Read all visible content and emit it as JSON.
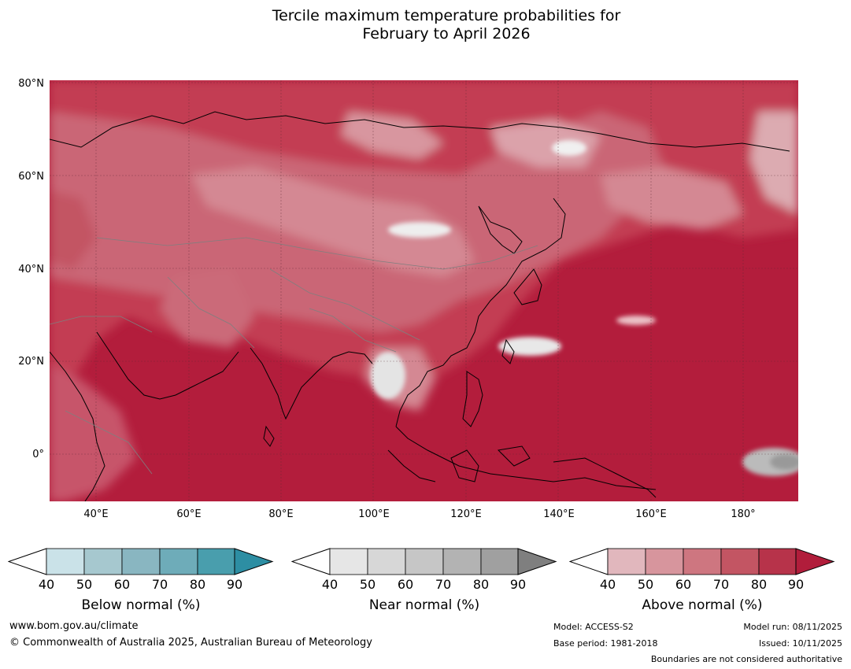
{
  "title_line1": "Tercile maximum temperature probabilities for",
  "title_line2": "February to April 2026",
  "lat_labels": [
    "80°N",
    "60°N",
    "40°N",
    "20°N",
    "0°"
  ],
  "lon_labels": [
    "40°E",
    "60°E",
    "80°E",
    "100°E",
    "120°E",
    "140°E",
    "160°E",
    "180°"
  ],
  "colorbars": [
    {
      "title": "Below normal (%)",
      "ticks": [
        "40",
        "50",
        "60",
        "70",
        "80",
        "90"
      ],
      "colors": [
        "#cae2e8",
        "#a6c8cf",
        "#89b6c1",
        "#6eacb9",
        "#499ead",
        "#2d8ea3"
      ]
    },
    {
      "title": "Near normal (%)",
      "ticks": [
        "40",
        "50",
        "60",
        "70",
        "80",
        "90"
      ],
      "colors": [
        "#e6e6e6",
        "#d7d7d7",
        "#c6c6c6",
        "#b3b3b3",
        "#a0a0a0",
        "#7f7f7f"
      ]
    },
    {
      "title": "Above normal (%)",
      "ticks": [
        "40",
        "50",
        "60",
        "70",
        "80",
        "90"
      ],
      "colors": [
        "#e1b7bd",
        "#d7959d",
        "#ce7680",
        "#c35563",
        "#b7334a",
        "#b11d3b"
      ]
    }
  ],
  "footer": {
    "website": "www.bom.gov.au/climate",
    "copyright": "© Commonwealth of Australia 2025, Australian Bureau of Meteorology",
    "model": "Model: ACCESS-S2",
    "base_period": "Base period: 1981-2018",
    "model_run": "Model run: 08/11/2025",
    "issued": "Issued: 10/11/2025",
    "disclaimer": "Boundaries are not considered authoritative"
  }
}
